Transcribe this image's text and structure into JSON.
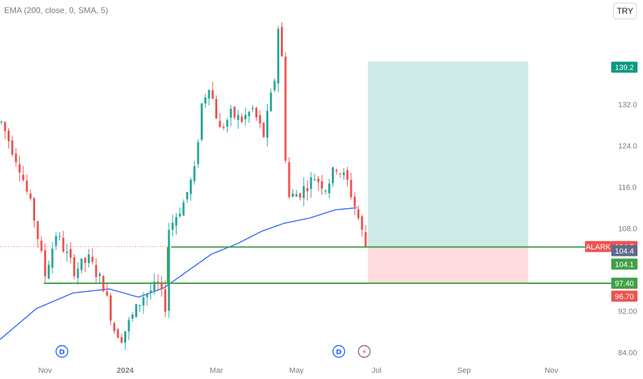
{
  "header": {
    "indicator": "EMA (200, close, 0, SMA, 5)",
    "currency": "TRY"
  },
  "colors": {
    "up": "#26a69a",
    "down": "#ef5350",
    "ema": "#2962ff",
    "support": "#43a047",
    "profit_zone": "#b2dfdb",
    "loss_zone": "#ffcdd2",
    "badge_symbol": "#ef5350",
    "badge_ema": "#5d6b8a",
    "badge_teal": "#089981"
  },
  "chart_data": {
    "type": "candlestick",
    "symbol": "ALARK",
    "y_ticks": [
      84.0,
      92.0,
      108.0,
      116.0,
      124.0,
      132.0
    ],
    "y_tick_labels": [
      "84.00",
      "92.00",
      "108.0",
      "116.0",
      "124.0",
      "132.0"
    ],
    "ylim": [
      82.6,
      152.2
    ],
    "x_tick_labels": [
      {
        "label": "Nov",
        "bar": 12
      },
      {
        "label": "2024",
        "bar": 34
      },
      {
        "label": "Mar",
        "bar": 59
      },
      {
        "label": "May",
        "bar": 81
      },
      {
        "label": "Jul",
        "bar": 103
      },
      {
        "label": "Sep",
        "bar": 127
      },
      {
        "label": "Nov",
        "bar": 151
      }
    ],
    "price_path": [
      [
        0,
        128.5
      ],
      [
        5,
        120
      ],
      [
        9,
        110
      ],
      [
        12,
        99
      ],
      [
        15,
        107
      ],
      [
        20,
        100
      ],
      [
        24,
        102
      ],
      [
        28,
        97
      ],
      [
        31,
        88.5
      ],
      [
        33,
        87
      ],
      [
        36,
        91
      ],
      [
        39,
        95
      ],
      [
        43,
        97
      ],
      [
        45,
        93
      ],
      [
        46,
        108
      ],
      [
        50,
        113
      ],
      [
        53,
        119
      ],
      [
        55,
        132
      ],
      [
        57,
        136
      ],
      [
        60,
        127
      ],
      [
        63,
        130
      ],
      [
        66,
        129
      ],
      [
        69,
        131
      ],
      [
        72,
        126
      ],
      [
        75,
        137
      ],
      [
        76,
        147
      ],
      [
        77,
        141
      ],
      [
        78,
        122
      ],
      [
        79,
        114
      ],
      [
        82,
        115
      ],
      [
        86,
        118
      ],
      [
        89,
        116
      ],
      [
        92,
        120
      ],
      [
        95,
        117
      ],
      [
        98,
        110
      ],
      [
        100,
        104.5
      ]
    ],
    "ema_path": [
      [
        0,
        86.5
      ],
      [
        10,
        92.5
      ],
      [
        20,
        95.5
      ],
      [
        30,
        96.3
      ],
      [
        38,
        94.7
      ],
      [
        45,
        96.5
      ],
      [
        52,
        100
      ],
      [
        58,
        103
      ],
      [
        65,
        105
      ],
      [
        72,
        107.5
      ],
      [
        78,
        109
      ],
      [
        85,
        110
      ],
      [
        92,
        111.6
      ],
      [
        98,
        112
      ]
    ],
    "support_lines": [
      {
        "price": 104.4,
        "from_bar": 47,
        "to_bar": 175
      },
      {
        "price": 97.4,
        "from_bar": 12,
        "to_bar": 175
      }
    ],
    "connector": {
      "bar": 46,
      "from_price": 97.4,
      "to_price": 104.4
    },
    "position": {
      "from_bar": 101,
      "to_bar": 145,
      "entry": 104.5,
      "target": 140.3,
      "stop": 97.4
    },
    "last_price": 104.5,
    "events": [
      {
        "type": "dividend",
        "label": "D",
        "bar": 17
      },
      {
        "type": "dividend",
        "label": "D",
        "bar": 93
      },
      {
        "type": "earnings",
        "label": "⚡",
        "bar": 100
      }
    ],
    "price_tags": [
      {
        "label": "139.2",
        "price": 139.2,
        "color": "#089981"
      },
      {
        "label": "104.5",
        "price": 104.5,
        "color": "#ef5350",
        "symbol": "ALARK"
      },
      {
        "label": "104.4",
        "price": 103.7,
        "color": "#5d6b8a"
      },
      {
        "label": "104.1",
        "price": 101.1,
        "color": "#43a047"
      },
      {
        "label": "97.40",
        "price": 97.4,
        "color": "#43a047"
      },
      {
        "label": "96.70",
        "price": 94.9,
        "color": "#ef5350"
      }
    ]
  }
}
